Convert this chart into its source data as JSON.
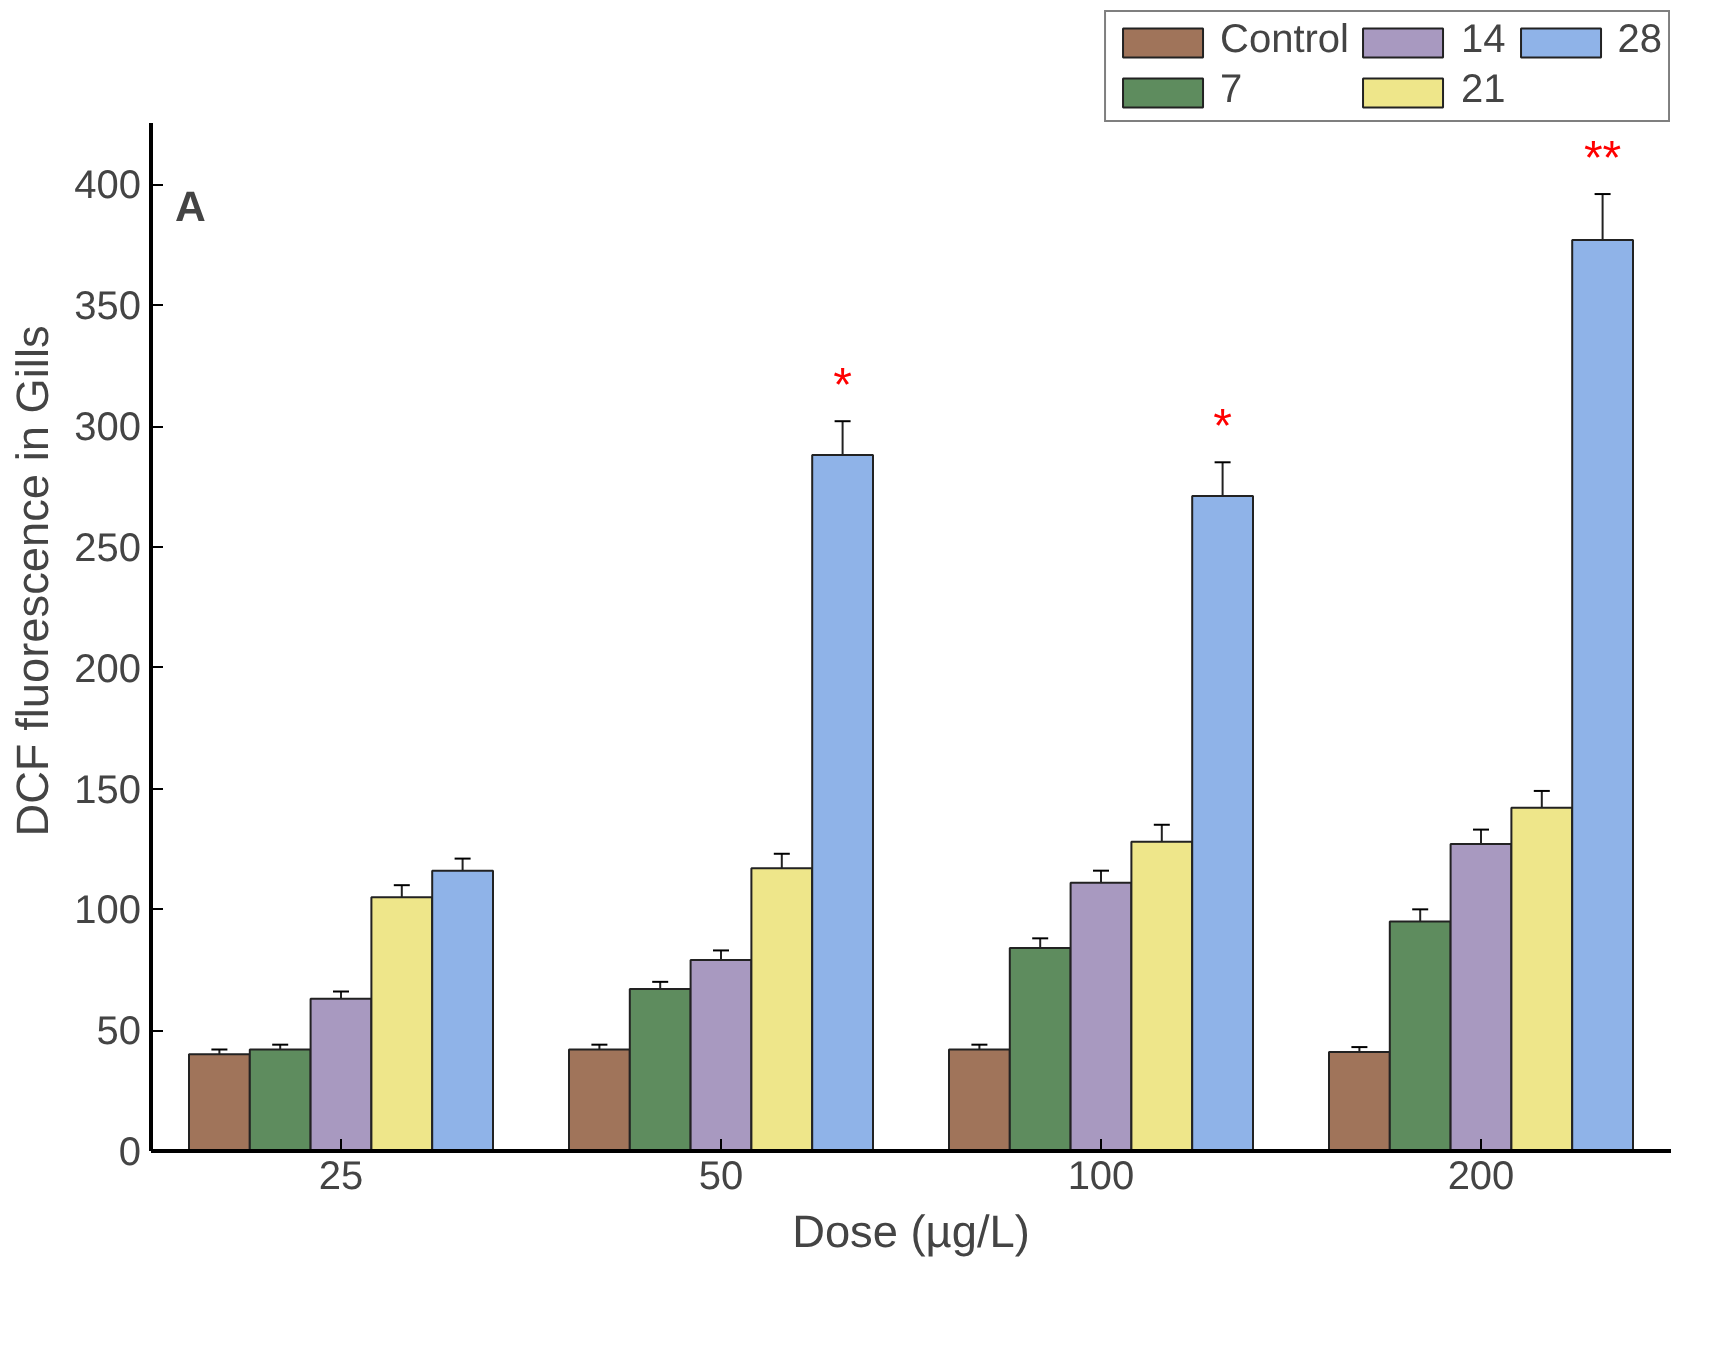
{
  "chart_data": {
    "type": "bar",
    "xlabel": "Dose (µg/L)",
    "ylabel": "DCF fluorescence in Gills",
    "categories": [
      "25",
      "50",
      "100",
      "200"
    ],
    "series": [
      {
        "name": "Control",
        "color": "#a0745a",
        "values": [
          40,
          42,
          42,
          41
        ],
        "errors": [
          2,
          2,
          2,
          2
        ]
      },
      {
        "name": "7",
        "color": "#5e8c5e",
        "values": [
          42,
          67,
          84,
          95
        ],
        "errors": [
          2,
          3,
          4,
          5
        ]
      },
      {
        "name": "14",
        "color": "#a899c0",
        "values": [
          63,
          79,
          111,
          127
        ],
        "errors": [
          3,
          4,
          5,
          6
        ]
      },
      {
        "name": "21",
        "color": "#eee68a",
        "values": [
          105,
          117,
          128,
          142
        ],
        "errors": [
          5,
          6,
          7,
          7
        ]
      },
      {
        "name": "28",
        "color": "#8fb3e8",
        "values": [
          116,
          288,
          271,
          377
        ],
        "errors": [
          5,
          14,
          14,
          19
        ]
      }
    ],
    "ylim": [
      0,
      425
    ],
    "yticks": [
      0,
      50,
      100,
      150,
      200,
      250,
      300,
      350,
      400
    ],
    "annotations": [
      "A",
      "*",
      "*",
      "**"
    ],
    "legend": "top right",
    "grid": false
  }
}
